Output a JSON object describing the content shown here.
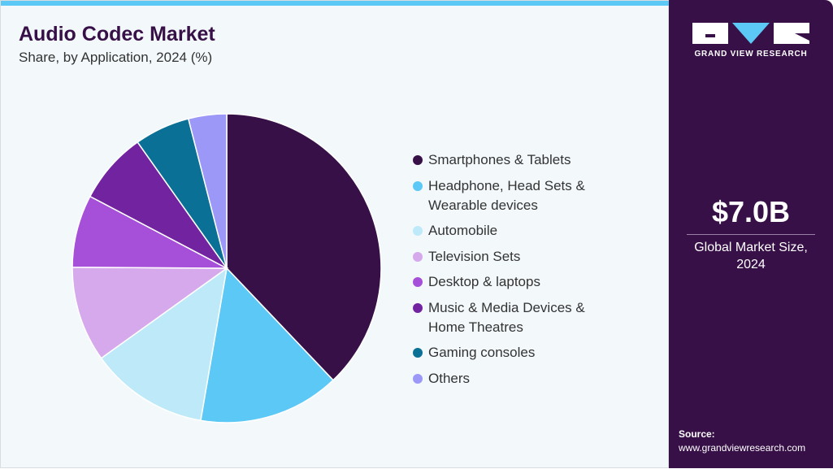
{
  "header": {
    "title": "Audio Codec Market",
    "subtitle": "Share, by Application, 2024 (%)"
  },
  "chart_data": {
    "type": "pie",
    "title": "Audio Codec Market",
    "subtitle": "Share, by Application, 2024 (%)",
    "start_angle": "12 o'clock, clockwise",
    "legend_position": "right",
    "categories": [
      "Smartphones & Tablets",
      "Headphone, Head Sets & Wearable devices",
      "Automobile",
      "Television Sets",
      "Desktop & laptops",
      "Music & Media Devices & Home Theatres",
      "Gaming consoles",
      "Others"
    ],
    "legend_lines": [
      [
        "Smartphones & Tablets"
      ],
      [
        "Headphone, Head Sets &",
        "Wearable devices"
      ],
      [
        "Automobile"
      ],
      [
        "Television Sets"
      ],
      [
        "Desktop & laptops"
      ],
      [
        "Music & Media Devices &",
        "Home Theatres"
      ],
      [
        "Gaming consoles"
      ],
      [
        "Others"
      ]
    ],
    "values": [
      37.9,
      14.8,
      12.4,
      10.0,
      7.6,
      7.5,
      5.8,
      4.0
    ],
    "colors": [
      "#371047",
      "#5bc8f5",
      "#bde9f9",
      "#d5a9ec",
      "#a64fd8",
      "#7223a0",
      "#0a7095",
      "#9b98f8"
    ]
  },
  "sidebar": {
    "brand": "GRAND VIEW RESEARCH",
    "market_size": "$7.0B",
    "market_size_label_1": "Global Market Size,",
    "market_size_label_2": "2024",
    "source_label": "Source:",
    "source_url": "www.grandviewresearch.com"
  },
  "colors": {
    "accent": "#5bc8f5",
    "panel": "#371047"
  }
}
